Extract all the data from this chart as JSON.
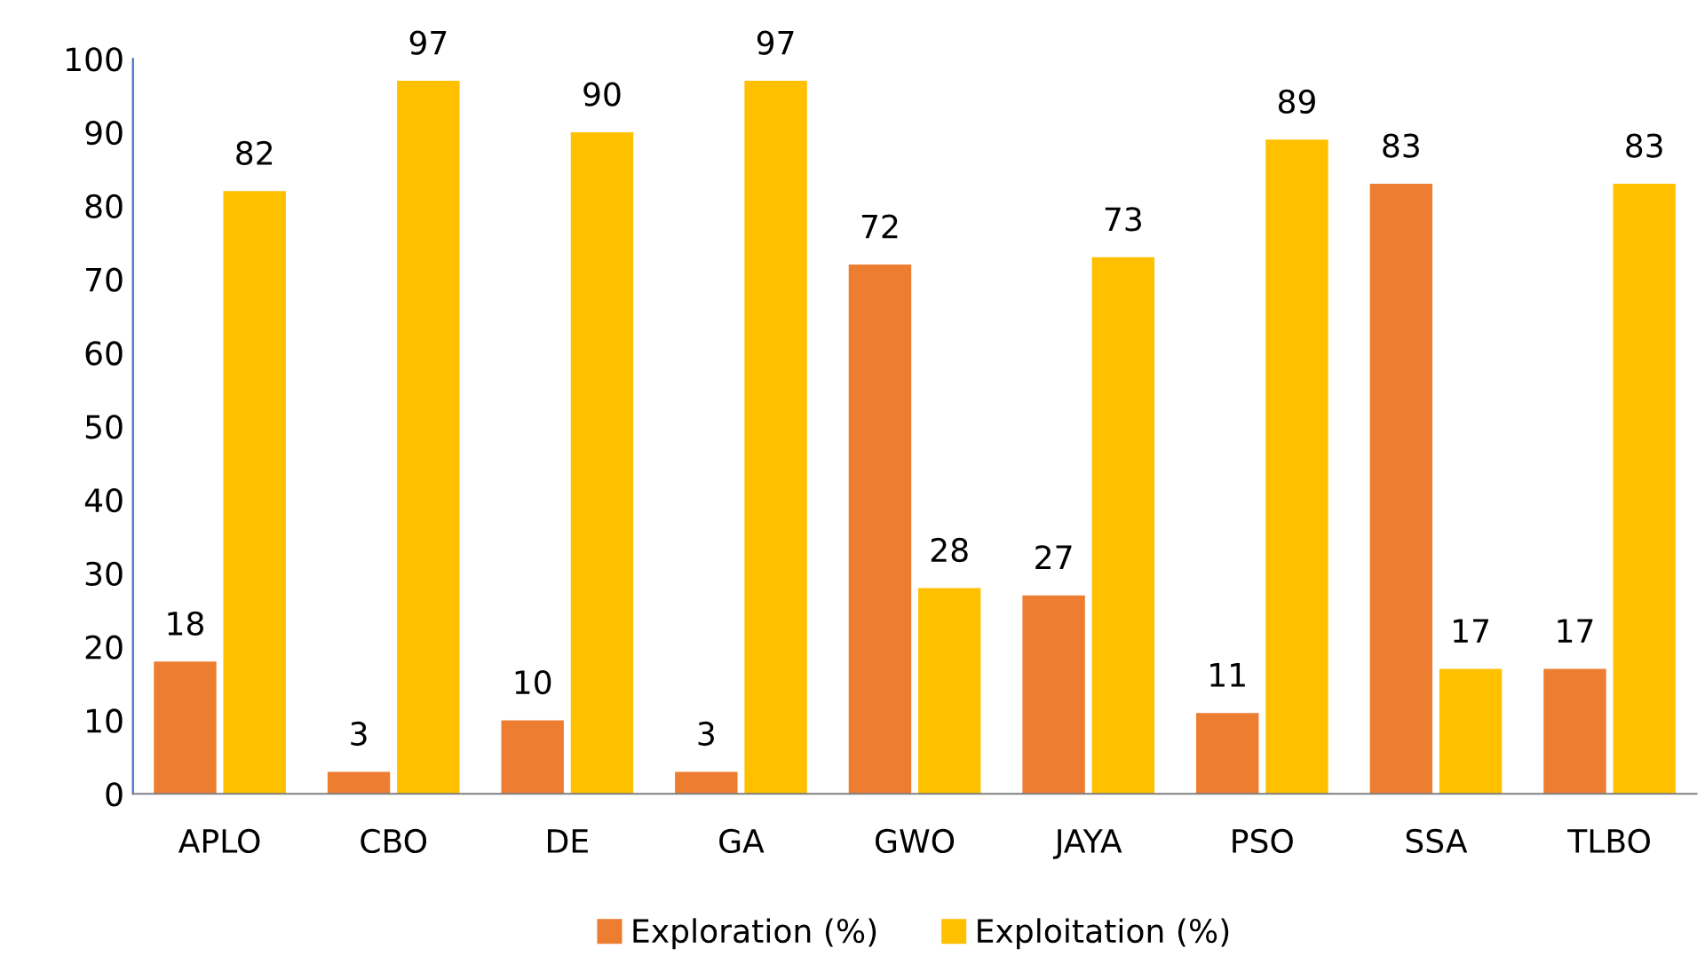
{
  "chart_data": {
    "type": "bar",
    "categories": [
      "APLO",
      "CBO",
      "DE",
      "GA",
      "GWO",
      "JAYA",
      "PSO",
      "SSA",
      "TLBO"
    ],
    "series": [
      {
        "name": "Exploration (%)",
        "color": "#ed7d31",
        "values": [
          18,
          3,
          10,
          3,
          72,
          27,
          11,
          83,
          17
        ]
      },
      {
        "name": "Exploitation (%)",
        "color": "#ffc000",
        "values": [
          82,
          97,
          90,
          97,
          28,
          73,
          89,
          17,
          83
        ]
      }
    ],
    "ylim": [
      0,
      100
    ],
    "yticks": [
      0,
      10,
      20,
      30,
      40,
      50,
      60,
      70,
      80,
      90,
      100
    ],
    "grid": false,
    "legend": "bottom",
    "data_labels": true
  }
}
